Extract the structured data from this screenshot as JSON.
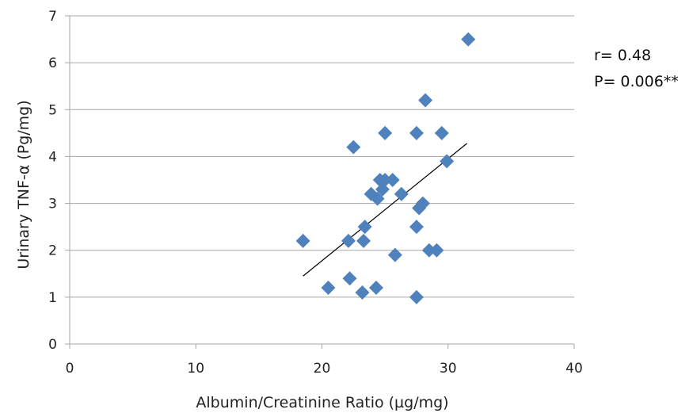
{
  "chart_data": {
    "type": "scatter",
    "xlabel": "Albumin/Creatinine Ratio (µg/mg)",
    "ylabel": "Urinary TNF-α (Pg/mg)",
    "xlim": [
      0,
      40
    ],
    "ylim": [
      0,
      7
    ],
    "x_ticks": [
      0,
      10,
      20,
      30,
      40
    ],
    "y_ticks": [
      0,
      1,
      2,
      3,
      4,
      5,
      6,
      7
    ],
    "x_tick_labels": [
      "0",
      "10",
      "20",
      "30",
      "40"
    ],
    "y_tick_labels": [
      "0",
      "1",
      "2",
      "3",
      "4",
      "5",
      "6",
      "7"
    ],
    "grid": "horizontal",
    "marker": "diamond",
    "marker_color": "#4f81bd",
    "trendline_color": "#000000",
    "points": [
      {
        "x": 31.6,
        "y": 6.5
      },
      {
        "x": 28.2,
        "y": 5.2
      },
      {
        "x": 25.0,
        "y": 4.5
      },
      {
        "x": 27.5,
        "y": 4.5
      },
      {
        "x": 29.5,
        "y": 4.5
      },
      {
        "x": 22.5,
        "y": 4.2
      },
      {
        "x": 29.9,
        "y": 3.9
      },
      {
        "x": 24.6,
        "y": 3.5
      },
      {
        "x": 25.0,
        "y": 3.5
      },
      {
        "x": 25.6,
        "y": 3.5
      },
      {
        "x": 24.8,
        "y": 3.3
      },
      {
        "x": 23.9,
        "y": 3.2
      },
      {
        "x": 26.3,
        "y": 3.2
      },
      {
        "x": 24.4,
        "y": 3.1
      },
      {
        "x": 28.0,
        "y": 3.0
      },
      {
        "x": 27.7,
        "y": 2.9
      },
      {
        "x": 23.4,
        "y": 2.5
      },
      {
        "x": 27.5,
        "y": 2.5
      },
      {
        "x": 18.5,
        "y": 2.2
      },
      {
        "x": 22.1,
        "y": 2.2
      },
      {
        "x": 23.3,
        "y": 2.2
      },
      {
        "x": 28.5,
        "y": 2.0
      },
      {
        "x": 29.1,
        "y": 2.0
      },
      {
        "x": 25.8,
        "y": 1.9
      },
      {
        "x": 22.2,
        "y": 1.4
      },
      {
        "x": 20.5,
        "y": 1.2
      },
      {
        "x": 24.3,
        "y": 1.2
      },
      {
        "x": 23.2,
        "y": 1.1
      },
      {
        "x": 27.5,
        "y": 1.0
      }
    ],
    "trendline": {
      "x1": 18.5,
      "y1": 1.45,
      "x2": 31.5,
      "y2": 4.28
    },
    "annotations": [
      "r= 0.48",
      "P= 0.006**"
    ]
  }
}
